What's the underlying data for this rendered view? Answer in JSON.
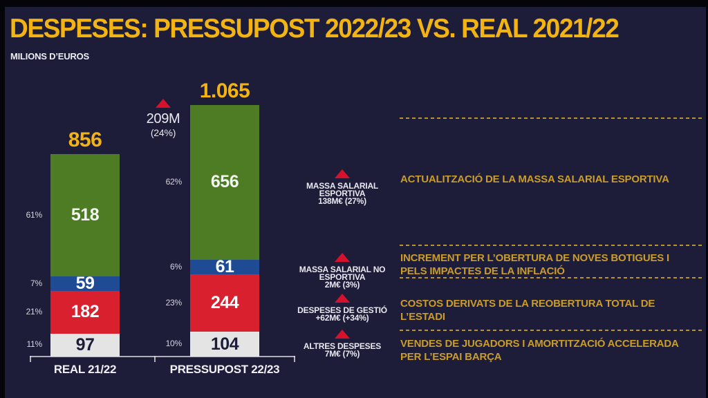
{
  "slide": {
    "title": "DESPESES: PRESSUPOST 2022/23 VS. REAL 2021/22",
    "subtitle": "MILIONS D’EUROS"
  },
  "colors": {
    "background": "#1d1d3a",
    "accent_gold": "#f2b313",
    "note_gold": "#c99c2b",
    "triangle_red": "#d6112b"
  },
  "chart_data": {
    "type": "bar",
    "stacked": true,
    "title": "DESPESES: PRESSUPOST 2022/23 VS. REAL 2021/22",
    "ylabel": "MILIONS D’EUROS",
    "legend": "none",
    "grid": false,
    "categories": [
      "REAL 21/22",
      "PRESSUPOST 22/23"
    ],
    "totals_display": [
      "856",
      "1.065"
    ],
    "series": [
      {
        "name": "Altres despeses",
        "color": "#e4e4e4",
        "value_text_color": "#1d1d3a",
        "values": [
          97,
          104
        ],
        "pcts": [
          "11%",
          "10%"
        ]
      },
      {
        "name": "Despeses de gestió",
        "color": "#d8202f",
        "value_text_color": "#ffffff",
        "values": [
          182,
          244
        ],
        "pcts": [
          "21%",
          "23%"
        ]
      },
      {
        "name": "Massa salarial no esportiva",
        "color": "#1e4b94",
        "value_text_color": "#ffffff",
        "values": [
          59,
          61
        ],
        "pcts": [
          "7%",
          "6%"
        ]
      },
      {
        "name": "Massa salarial esportiva",
        "color": "#4d7c24",
        "value_text_color": "#f2f6ee",
        "values": [
          518,
          656
        ],
        "pcts": [
          "61%",
          "62%"
        ]
      }
    ],
    "delta": {
      "value": "209M",
      "pct": "(24%)"
    }
  },
  "annotations": [
    {
      "title_lines": [
        "MASSA SALARIAL",
        "ESPORTIVA"
      ],
      "value": "138M€ (27%)"
    },
    {
      "title_lines": [
        "MASSA SALARIAL NO",
        "ESPORTIVA"
      ],
      "value": "2M€ (3%)"
    },
    {
      "title_lines": [
        "DESPESES DE GESTIÓ"
      ],
      "value": "+62M€ (+34%)"
    },
    {
      "title_lines": [
        "ALTRES DESPESES"
      ],
      "value": "7M€ (7%)"
    }
  ],
  "notes": [
    "ACTUALITZACIÓ DE LA MASSA SALARIAL ESPORTIVA",
    "INCREMENT PER L’OBERTURA DE NOVES BOTIGUES I PELS IMPACTES DE LA INFLACIÓ",
    "COSTOS DERIVATS DE LA REOBERTURA TOTAL DE L’ESTADI",
    "VENDES DE JUGADORS I AMORTITZACIÓ ACCELERADA PER L’ESPAI BARÇA"
  ]
}
